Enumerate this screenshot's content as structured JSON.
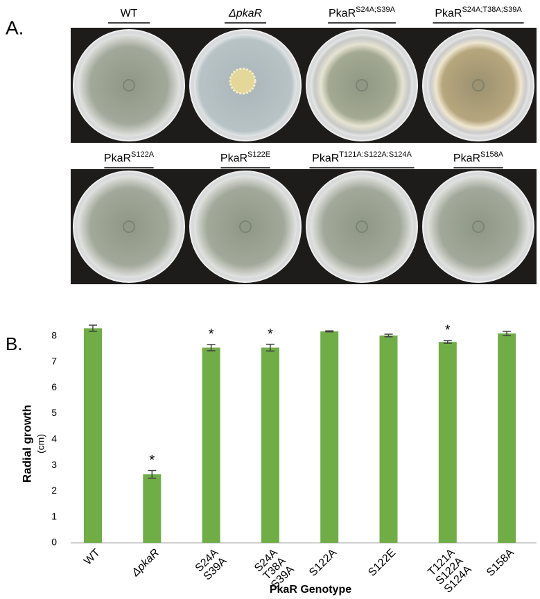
{
  "panel_a": {
    "label": "A.",
    "plates": [
      {
        "name": "WT"
      },
      {
        "name": "ΔpkaR",
        "italic": true
      },
      {
        "name": "PkaR",
        "superscript": "S24A;S39A"
      },
      {
        "name": "PkaR",
        "superscript": "S24A;T38A;S39A"
      },
      {
        "name": "PkaR",
        "superscript": "S122A"
      },
      {
        "name": "PkaR",
        "superscript": "S122E"
      },
      {
        "name": "PkaR",
        "superscript": "T121A:S122A:S124A"
      },
      {
        "name": "PkaR",
        "superscript": "S158A"
      }
    ]
  },
  "chart_data": {
    "type": "bar",
    "panel_label": "B.",
    "y_label": "Radial growth",
    "y_label_unit": "(cm)",
    "x_label": "PkaR Genotype",
    "categories": [
      [
        "WT"
      ],
      [
        "ΔpkaR"
      ],
      [
        "S24A",
        "S39A"
      ],
      [
        "S24A",
        "T38A",
        "S39A"
      ],
      [
        "S122A"
      ],
      [
        "S122E"
      ],
      [
        "T121A",
        "S122A",
        "S124A"
      ],
      [
        "S158A"
      ]
    ],
    "italic_categories": [
      false,
      true,
      false,
      false,
      false,
      false,
      false,
      false
    ],
    "values": [
      8.3,
      2.65,
      7.55,
      7.55,
      8.18,
      8.02,
      7.77,
      8.1
    ],
    "errors": [
      0.12,
      0.15,
      0.12,
      0.13,
      0.02,
      0.05,
      0.05,
      0.08
    ],
    "significant": [
      false,
      true,
      true,
      true,
      false,
      false,
      true,
      false
    ],
    "significance_mark": "*",
    "color": "#70ad47",
    "ylim": [
      0,
      8.5
    ],
    "yticks": [
      0,
      1,
      2,
      3,
      4,
      5,
      6,
      7,
      8
    ],
    "grid": false
  }
}
